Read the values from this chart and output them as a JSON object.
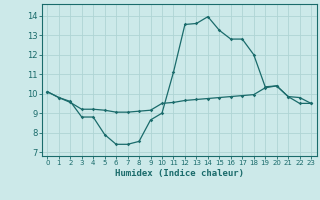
{
  "title": "",
  "xlabel": "Humidex (Indice chaleur)",
  "ylabel": "",
  "bg_color": "#cce9e9",
  "grid_color": "#afd4d4",
  "line_color": "#1a6b6b",
  "x_ticks": [
    0,
    1,
    2,
    3,
    4,
    5,
    6,
    7,
    8,
    9,
    10,
    11,
    12,
    13,
    14,
    15,
    16,
    17,
    18,
    19,
    20,
    21,
    22,
    23
  ],
  "y_ticks": [
    7,
    8,
    9,
    10,
    11,
    12,
    13,
    14
  ],
  "ylim": [
    6.8,
    14.6
  ],
  "xlim": [
    -0.5,
    23.5
  ],
  "line1_x": [
    0,
    1,
    2,
    3,
    4,
    5,
    6,
    7,
    8,
    9,
    10,
    11,
    12,
    13,
    14,
    15,
    16,
    17,
    18,
    19,
    20,
    21,
    22,
    23
  ],
  "line1_y": [
    10.1,
    9.8,
    9.6,
    8.8,
    8.8,
    7.9,
    7.4,
    7.4,
    7.55,
    8.65,
    9.0,
    11.1,
    13.55,
    13.6,
    13.95,
    13.25,
    12.8,
    12.8,
    12.0,
    10.35,
    10.4,
    9.85,
    9.8,
    9.5
  ],
  "line2_x": [
    0,
    1,
    2,
    3,
    4,
    5,
    6,
    7,
    8,
    9,
    10,
    11,
    12,
    13,
    14,
    15,
    16,
    17,
    18,
    19,
    20,
    21,
    22,
    23
  ],
  "line2_y": [
    10.1,
    9.8,
    9.55,
    9.2,
    9.2,
    9.15,
    9.05,
    9.05,
    9.1,
    9.15,
    9.5,
    9.55,
    9.65,
    9.7,
    9.75,
    9.8,
    9.85,
    9.9,
    9.95,
    10.3,
    10.4,
    9.85,
    9.5,
    9.5
  ]
}
